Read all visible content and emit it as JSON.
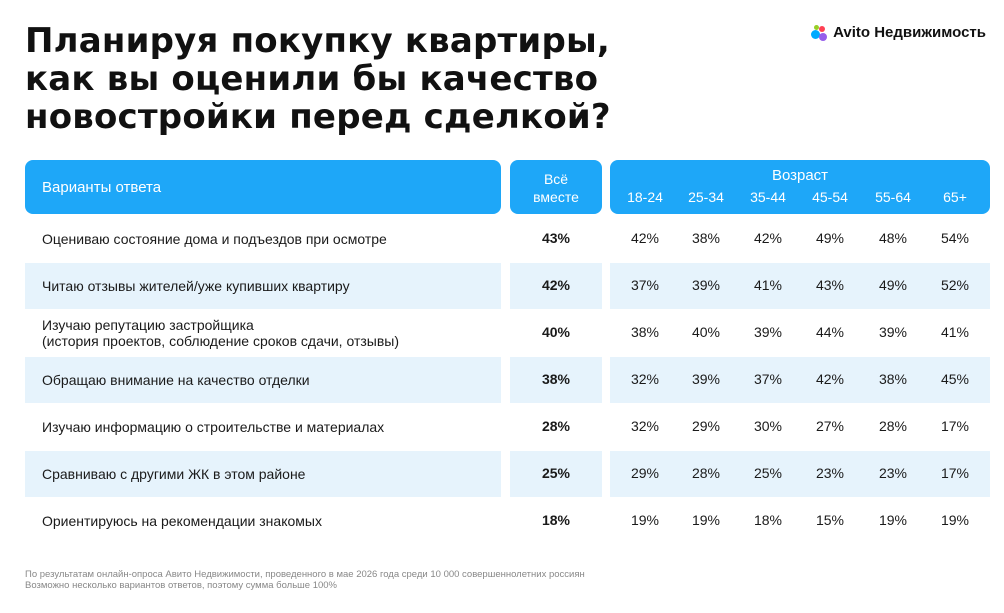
{
  "title_lines": [
    "Планируя покупку квартиры,",
    "как вы оценили бы качество",
    "новостройки перед сделкой?"
  ],
  "brand": {
    "name": "Avito Недвижимость",
    "logo_colors": [
      "#00aaff",
      "#97cf26",
      "#ff4053",
      "#965eeb"
    ]
  },
  "colors": {
    "header": "#1ea7f8",
    "stripe": "#e6f3fc"
  },
  "chart_data": {
    "type": "table",
    "header": {
      "options_label": "Варианты ответа",
      "total_label": [
        "Всё",
        "вместе"
      ],
      "age_label": "Возраст",
      "age_groups": [
        "18-24",
        "25-34",
        "35-44",
        "45-54",
        "55-64",
        "65+"
      ]
    },
    "rows": [
      {
        "label": [
          "Оцениваю состояние дома и подъездов при осмотре"
        ],
        "total": "43%",
        "values": [
          "42%",
          "38%",
          "42%",
          "49%",
          "48%",
          "54%"
        ]
      },
      {
        "label": [
          "Читаю отзывы жителей/уже купивших квартиру"
        ],
        "total": "42%",
        "values": [
          "37%",
          "39%",
          "41%",
          "43%",
          "49%",
          "52%"
        ]
      },
      {
        "label": [
          "Изучаю репутацию застройщика",
          "(история проектов, соблюдение сроков сдачи, отзывы)"
        ],
        "total": "40%",
        "values": [
          "38%",
          "40%",
          "39%",
          "44%",
          "39%",
          "41%"
        ]
      },
      {
        "label": [
          "Обращаю внимание на качество отделки"
        ],
        "total": "38%",
        "values": [
          "32%",
          "39%",
          "37%",
          "42%",
          "38%",
          "45%"
        ]
      },
      {
        "label": [
          "Изучаю информацию о строительстве и материалах"
        ],
        "total": "28%",
        "values": [
          "32%",
          "29%",
          "30%",
          "27%",
          "28%",
          "17%"
        ]
      },
      {
        "label": [
          "Сравниваю с другими ЖК в этом районе"
        ],
        "total": "25%",
        "values": [
          "29%",
          "28%",
          "25%",
          "23%",
          "23%",
          "17%"
        ]
      },
      {
        "label": [
          "Ориентируюсь на рекомендации знакомых"
        ],
        "total": "18%",
        "values": [
          "19%",
          "19%",
          "18%",
          "15%",
          "19%",
          "19%"
        ]
      }
    ]
  },
  "footnote": [
    "По результатам онлайн-опроса Авито Недвижимости, проведенного в мае 2026 года среди 10 000 совершеннолетних россиян",
    "Возможно несколько вариантов ответов, поэтому сумма больше 100%"
  ]
}
